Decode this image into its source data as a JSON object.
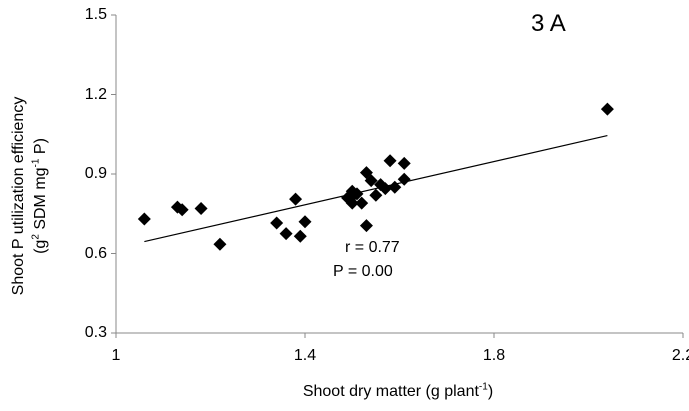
{
  "chart_data": {
    "type": "scatter",
    "panel_label": "3 A",
    "xlabel": {
      "pre": "Shoot dry matter (g plant",
      "sup": "-1",
      "post": ")"
    },
    "ylabel": {
      "line1": "Shoot P utilization efficiency",
      "line2_pre": "(g",
      "line2_sup1": "2",
      "line2_mid": " SDM mg",
      "line2_sup2": "-1",
      "line2_post": " P)"
    },
    "xlim": [
      1.0,
      2.2
    ],
    "ylim": [
      0.3,
      1.5
    ],
    "xticks": [
      "1",
      "1.4",
      "1.8",
      "2.2"
    ],
    "yticks": [
      "0.3",
      "0.6",
      "0.9",
      "1.2",
      "1.5"
    ],
    "grid": false,
    "marker": "diamond",
    "marker_color": "#000000",
    "x": [
      1.06,
      1.13,
      1.14,
      1.18,
      1.22,
      1.34,
      1.36,
      1.38,
      1.39,
      1.4,
      1.49,
      1.5,
      1.5,
      1.5,
      1.51,
      1.52,
      1.53,
      1.53,
      1.54,
      1.55,
      1.56,
      1.57,
      1.58,
      1.59,
      1.61,
      1.61,
      2.04
    ],
    "y": [
      0.73,
      0.775,
      0.765,
      0.77,
      0.635,
      0.715,
      0.675,
      0.805,
      0.665,
      0.72,
      0.81,
      0.835,
      0.815,
      0.79,
      0.825,
      0.79,
      0.905,
      0.705,
      0.875,
      0.82,
      0.86,
      0.845,
      0.95,
      0.85,
      0.94,
      0.88,
      1.145
    ],
    "trendline": {
      "x": [
        1.06,
        2.04
      ],
      "y": [
        0.645,
        1.045
      ]
    },
    "annotations": [
      "r = 0.77",
      "P = 0.00"
    ]
  }
}
